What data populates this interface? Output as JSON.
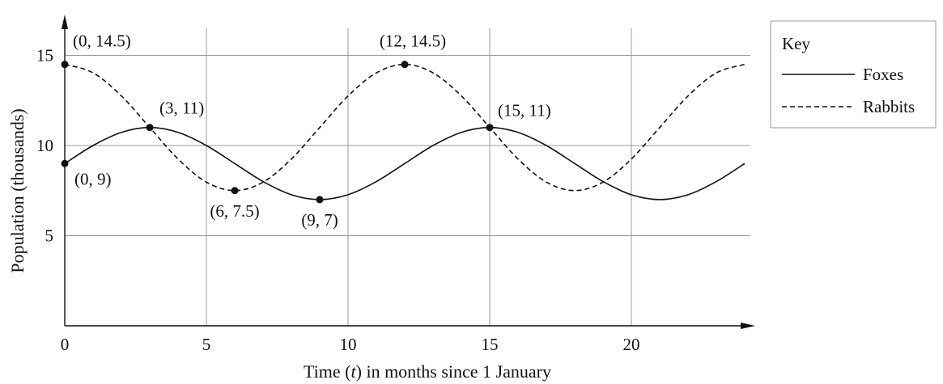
{
  "chart_data": {
    "type": "line",
    "xlabel": "Time (t) in months since 1 January",
    "ylabel": "Population (thousands)",
    "xlim": [
      0,
      24.2
    ],
    "ylim": [
      0,
      16.5
    ],
    "x_ticks": [
      "0",
      "5",
      "10",
      "15",
      "20"
    ],
    "y_ticks": [
      "5",
      "10",
      "15"
    ],
    "grid": true,
    "legend": {
      "title": "Key",
      "position": "right",
      "entries": [
        "Foxes",
        "Rabbits"
      ]
    },
    "series": [
      {
        "name": "Foxes",
        "style": "solid",
        "x": [
          0,
          1,
          2,
          3,
          4,
          5,
          6,
          7,
          8,
          9,
          10,
          11,
          12,
          13,
          14,
          15,
          16,
          17,
          18,
          19,
          20,
          21,
          22,
          23,
          24
        ],
        "y": [
          9,
          10.0,
          10.73,
          11,
          10.73,
          10.0,
          9,
          8.0,
          7.27,
          7,
          7.27,
          8.0,
          9,
          10.0,
          10.73,
          11,
          10.73,
          10.0,
          9,
          8.0,
          7.27,
          7,
          7.27,
          8.0,
          9
        ]
      },
      {
        "name": "Rabbits",
        "style": "dashed",
        "x": [
          0,
          1,
          2,
          3,
          4,
          5,
          6,
          7,
          8,
          9,
          10,
          11,
          12,
          13,
          14,
          15,
          16,
          17,
          18,
          19,
          20,
          21,
          22,
          23,
          24
        ],
        "y": [
          14.5,
          14.03,
          12.75,
          11,
          9.25,
          7.97,
          7.5,
          7.97,
          9.25,
          11,
          12.75,
          14.03,
          14.5,
          14.03,
          12.75,
          11,
          9.25,
          7.97,
          7.5,
          7.97,
          9.25,
          11,
          12.75,
          14.03,
          14.5
        ]
      }
    ],
    "points": [
      {
        "x": 0,
        "y": 14.5,
        "label": "(0, 14.5)"
      },
      {
        "x": 0,
        "y": 9,
        "label": "(0, 9)"
      },
      {
        "x": 3,
        "y": 11,
        "label": "(3, 11)"
      },
      {
        "x": 6,
        "y": 7.5,
        "label": "(6, 7.5)"
      },
      {
        "x": 9,
        "y": 7,
        "label": "(9, 7)"
      },
      {
        "x": 12,
        "y": 14.5,
        "label": "(12, 14.5)"
      },
      {
        "x": 15,
        "y": 11,
        "label": "(15, 11)"
      }
    ]
  }
}
